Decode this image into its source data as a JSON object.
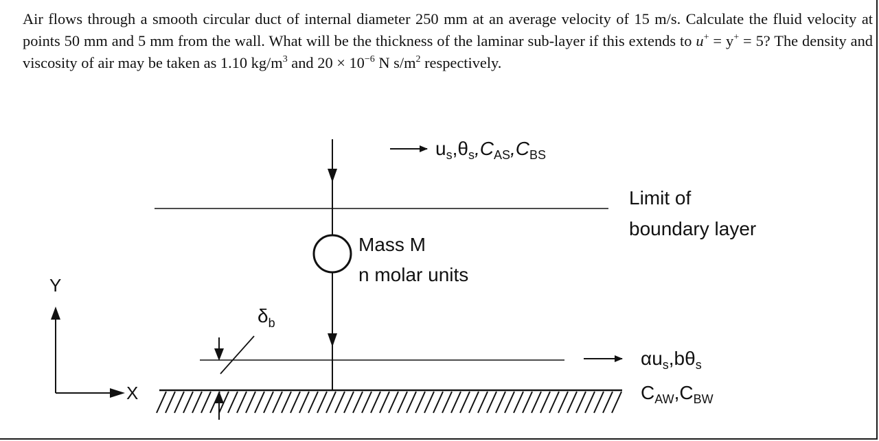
{
  "problem": {
    "line1": "Air flows through a smooth circular duct of internal diameter 250 mm at an average velocity of 15 m/s.",
    "line2": "Calculate the fluid velocity at points 50 mm and 5 mm from the wall. What will be the thickness of the laminar",
    "line3_pre": "sub-layer if this extends to ",
    "u_plus": "u",
    "plus": "+",
    "eq": " = ",
    "y_plus": "y",
    "line3_post": " = 5? The density and viscosity of air may be taken as 1.10 kg/m",
    "cube": "3",
    "line3_end": " and",
    "line4_pre": "20 × 10",
    "exp": "−6",
    "line4_mid": " N s/m",
    "square": "2",
    "line4_end": " respectively."
  },
  "figure": {
    "top_flow_label": "u",
    "top_flow_sub_s1": "s",
    "top_flow_theta": ",θ",
    "top_flow_sub_s2": "s",
    "top_flow_c1": ",C",
    "top_flow_sub_as": "AS",
    "top_flow_c2": ",C",
    "top_flow_sub_bs": "BS",
    "boundary_label_1": "Limit of",
    "boundary_label_2": "boundary layer",
    "mass_label_1": "Mass M",
    "mass_label_2": "n molar units",
    "y_axis": "Y",
    "x_axis": "X",
    "delta": "δ",
    "delta_sub": "b",
    "bottom_flow_alpha": "αu",
    "bottom_flow_sub_s1": "s",
    "bottom_flow_b": ",bθ",
    "bottom_flow_sub_s2": "s",
    "bottom_c1": "C",
    "bottom_sub_aw": "AW",
    "bottom_c2": ",C",
    "bottom_sub_bw": "BW"
  }
}
